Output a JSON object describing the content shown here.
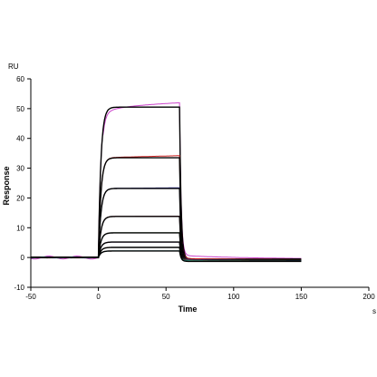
{
  "chart_data": {
    "type": "line",
    "title": "",
    "xlabel": "Time",
    "ylabel": "Response",
    "x_unit": "s",
    "y_unit": "RU",
    "xlim": [
      -50,
      200
    ],
    "ylim": [
      -10,
      60
    ],
    "x_ticks": [
      -50,
      0,
      50,
      100,
      150,
      200
    ],
    "y_ticks": [
      -10,
      0,
      10,
      20,
      30,
      40,
      50,
      60
    ],
    "x_tick_labels": [
      "-50",
      "0",
      "50",
      "100",
      "150",
      "200"
    ],
    "y_tick_labels": [
      "-10",
      "0",
      "10",
      "20",
      "30",
      "40",
      "50",
      "60"
    ],
    "grid": false,
    "legend": "none",
    "association_start": 0,
    "dissociation_start": 60,
    "end": 150,
    "curves": [
      {
        "plateau": 50.5,
        "tail": -0.5,
        "color": "#cc44cc",
        "drift_end": 52.0
      },
      {
        "plateau": 33.5,
        "tail": -0.8,
        "color": "#cc2222",
        "drift_end": 34.2
      },
      {
        "plateau": 23.2,
        "tail": -0.9,
        "color": "#3333aa",
        "drift_end": 23.4
      },
      {
        "plateau": 13.8,
        "tail": -1.0,
        "color": "#aa2244",
        "drift_end": 13.9
      },
      {
        "plateau": 8.3,
        "tail": -1.0,
        "color": "#228833",
        "drift_end": 8.3
      },
      {
        "plateau": 5.2,
        "tail": -1.1,
        "color": "#7722aa",
        "drift_end": 5.2
      },
      {
        "plateau": 3.4,
        "tail": -1.2,
        "color": "#aa8822",
        "drift_end": 3.4
      },
      {
        "plateau": 2.2,
        "tail": -1.3,
        "color": "#11aaaa",
        "drift_end": 2.2
      }
    ]
  }
}
